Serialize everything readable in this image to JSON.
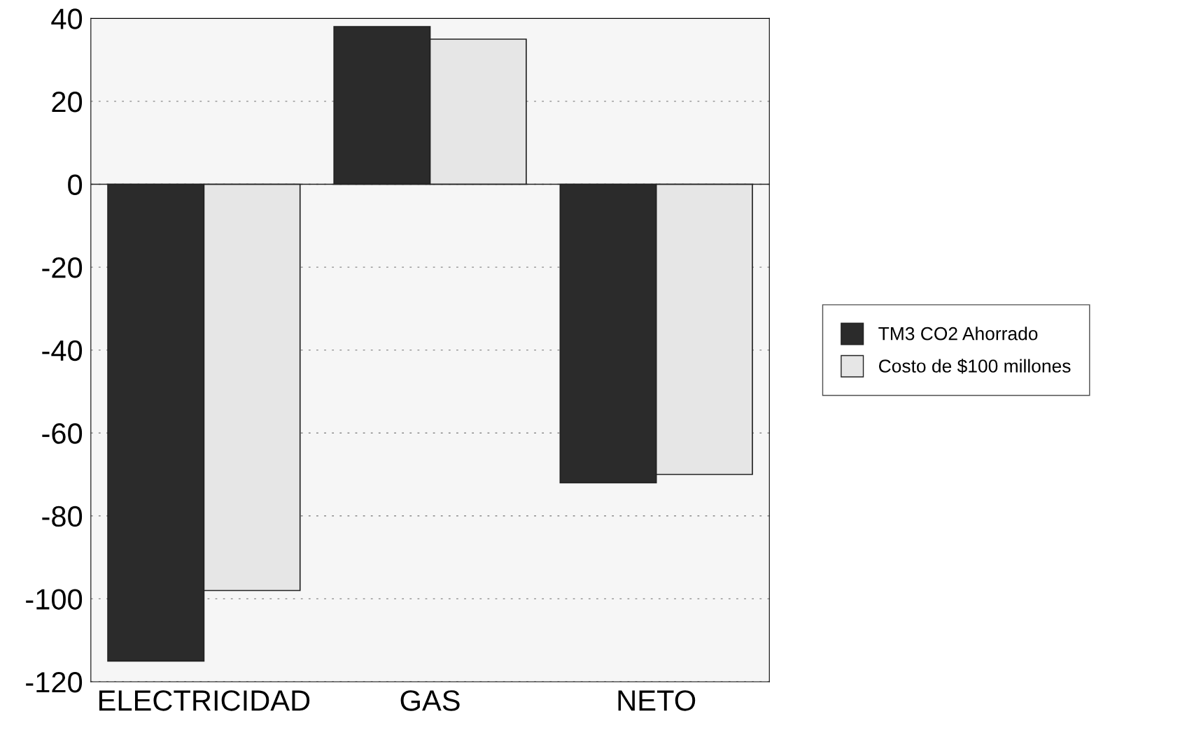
{
  "chart_data": {
    "type": "bar",
    "categories": [
      "ELECTRICIDAD",
      "GAS",
      "NETO"
    ],
    "series": [
      {
        "name": "TM3 CO2 Ahorrado",
        "color": "#2b2b2b",
        "values": [
          -115,
          38,
          -72
        ]
      },
      {
        "name": "Costo de $100 millones",
        "color": "#e6e6e6",
        "values": [
          -98,
          35,
          -70
        ]
      }
    ],
    "ylim": [
      -120,
      40
    ],
    "yticks": [
      -120,
      -100,
      -80,
      -60,
      -40,
      -20,
      0,
      20,
      40
    ],
    "grid": "y",
    "legend": "right"
  }
}
